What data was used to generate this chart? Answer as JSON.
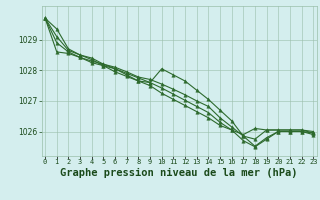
{
  "title": "Graphe pression niveau de la mer (hPa)",
  "hours": [
    0,
    1,
    2,
    3,
    4,
    5,
    6,
    7,
    8,
    9,
    10,
    11,
    12,
    13,
    14,
    15,
    16,
    17,
    18,
    19,
    20,
    21,
    22,
    23
  ],
  "series": [
    [
      1029.7,
      1029.35,
      1028.7,
      1028.5,
      1028.4,
      1028.2,
      1028.05,
      1027.85,
      1027.65,
      1027.5,
      1027.25,
      1027.05,
      1026.85,
      1026.65,
      1026.45,
      1026.2,
      1026.05,
      1025.9,
      1026.1,
      1026.05,
      1026.05,
      1026.05,
      1026.05,
      1025.95
    ],
    [
      1029.7,
      1029.1,
      1028.65,
      1028.5,
      1028.35,
      1028.15,
      1027.95,
      1027.8,
      1027.65,
      1027.6,
      1028.05,
      1027.85,
      1027.65,
      1027.35,
      1027.05,
      1026.7,
      1026.35,
      1025.85,
      1025.75,
      1026.05,
      1026.05,
      1026.05,
      1026.05,
      1026.0
    ],
    [
      1029.7,
      1028.9,
      1028.6,
      1028.42,
      1028.25,
      1028.15,
      1028.05,
      1027.9,
      1027.75,
      1027.6,
      1027.42,
      1027.22,
      1027.02,
      1026.82,
      1026.62,
      1026.3,
      1026.05,
      1025.7,
      1025.5,
      1025.75,
      1026.0,
      1026.0,
      1026.0,
      1025.95
    ],
    [
      1029.7,
      1028.6,
      1028.55,
      1028.42,
      1028.3,
      1028.2,
      1028.1,
      1027.95,
      1027.78,
      1027.7,
      1027.55,
      1027.38,
      1027.2,
      1027.0,
      1026.82,
      1026.45,
      1026.15,
      1025.85,
      1025.52,
      1025.8,
      1026.0,
      1026.0,
      1026.0,
      1025.9
    ]
  ],
  "line_color": "#2d6a2d",
  "bg_color": "#d4eeee",
  "grid_color": "#9abfaa",
  "text_color": "#1a4a1a",
  "ylim": [
    1025.2,
    1030.1
  ],
  "yticks": [
    1026,
    1027,
    1028,
    1029
  ],
  "markersize": 2.5,
  "linewidth": 0.8,
  "title_fontsize": 7.5,
  "tick_fontsize": 5.5
}
